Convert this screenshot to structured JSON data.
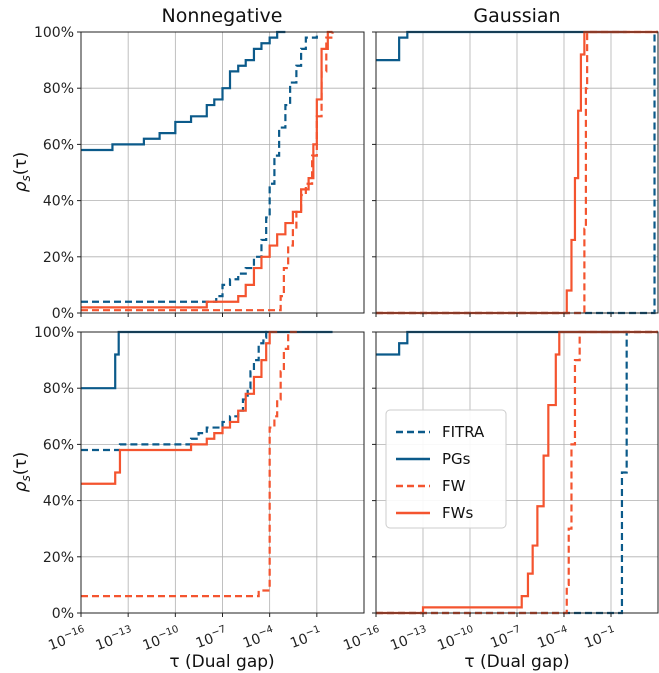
{
  "column_titles": [
    "Nonnegative",
    "Gaussian"
  ],
  "ylabel": "ρs(τ)",
  "ylabel_main": "ρ",
  "ylabel_sub": "s",
  "ylabel_rest": "(τ)",
  "xlabel": "τ (Dual gap)",
  "y_tick_labels": [
    "0%",
    "20%",
    "40%",
    "60%",
    "80%",
    "100%"
  ],
  "x_tick_labels": [
    {
      "base": "10",
      "exp": "−16"
    },
    {
      "base": "10",
      "exp": "−13"
    },
    {
      "base": "10",
      "exp": "−10"
    },
    {
      "base": "10",
      "exp": "−7"
    },
    {
      "base": "10",
      "exp": "−4"
    },
    {
      "base": "10",
      "exp": "−1"
    }
  ],
  "legend": [
    {
      "label": "FITRA",
      "color": "#0b5a8a",
      "dash": true
    },
    {
      "label": "PGs",
      "color": "#0b5a8a",
      "dash": false
    },
    {
      "label": "FW",
      "color": "#f4542f",
      "dash": true
    },
    {
      "label": "FWs",
      "color": "#f4542f",
      "dash": false
    }
  ],
  "chart_data": [
    {
      "type": "line",
      "title": "Nonnegative",
      "x_scale": "log",
      "xlim": [
        1e-16,
        100
      ],
      "ylim": [
        0,
        1
      ],
      "grid": true,
      "series": [
        {
          "name": "FITRA",
          "style": "dashed",
          "color": "#0b5a8a",
          "x": [
            1e-16,
            1e-15,
            1e-14,
            1e-12,
            1e-09,
            4e-08,
            1e-07,
            3e-07,
            1e-06,
            3e-06,
            1e-05,
            3e-05,
            6e-05,
            0.0001,
            0.0002,
            0.0004,
            0.001,
            0.002,
            0.005,
            0.01,
            0.02,
            0.1
          ],
          "y": [
            0.04,
            0.04,
            0.04,
            0.04,
            0.04,
            0.06,
            0.1,
            0.12,
            0.14,
            0.16,
            0.2,
            0.26,
            0.34,
            0.46,
            0.56,
            0.66,
            0.74,
            0.82,
            0.88,
            0.94,
            0.98,
            1.0
          ]
        },
        {
          "name": "PGs",
          "style": "solid",
          "color": "#0b5a8a",
          "x": [
            1e-16,
            1e-14,
            1e-13,
            1e-12,
            1e-11,
            1e-10,
            1e-09,
            1e-08,
            3e-08,
            1e-07,
            3e-07,
            1e-06,
            3e-06,
            1e-05,
            3e-05,
            0.0001,
            0.0003,
            0.001
          ],
          "y": [
            0.58,
            0.6,
            0.6,
            0.62,
            0.64,
            0.68,
            0.7,
            0.74,
            0.76,
            0.8,
            0.86,
            0.88,
            0.9,
            0.94,
            0.96,
            0.98,
            1.0,
            1.0
          ]
        },
        {
          "name": "FW",
          "style": "dashed",
          "color": "#f4542f",
          "x": [
            1e-16,
            1e-10,
            1e-06,
            0.0003,
            0.0005,
            0.0008,
            0.0015,
            0.003,
            0.005,
            0.01,
            0.02,
            0.05,
            0.1,
            0.2,
            0.4,
            1
          ],
          "y": [
            0.01,
            0.01,
            0.01,
            0.01,
            0.06,
            0.16,
            0.24,
            0.3,
            0.36,
            0.42,
            0.46,
            0.56,
            0.7,
            0.86,
            0.98,
            1.0
          ]
        },
        {
          "name": "FWs",
          "style": "solid",
          "color": "#f4542f",
          "x": [
            1e-16,
            1e-12,
            1e-09,
            1e-08,
            1e-07,
            1e-06,
            3e-06,
            1e-05,
            3e-05,
            0.0001,
            0.0003,
            0.001,
            0.003,
            0.01,
            0.03,
            0.06,
            0.1,
            0.2,
            0.5,
            1
          ],
          "y": [
            0.02,
            0.02,
            0.02,
            0.04,
            0.04,
            0.06,
            0.1,
            0.16,
            0.2,
            0.24,
            0.28,
            0.32,
            0.36,
            0.44,
            0.48,
            0.6,
            0.76,
            0.94,
            1.0,
            1.0
          ]
        }
      ]
    },
    {
      "type": "line",
      "title": "Gaussian",
      "x_scale": "log",
      "xlim": [
        1e-16,
        100
      ],
      "ylim": [
        0,
        1
      ],
      "grid": true,
      "series": [
        {
          "name": "FITRA",
          "style": "dashed",
          "color": "#0b5a8a",
          "x": [
            1e-16,
            10,
            50,
            60,
            100
          ],
          "y": [
            0.0,
            0.0,
            0.0,
            1.0,
            1.0
          ]
        },
        {
          "name": "PGs",
          "style": "solid",
          "color": "#0b5a8a",
          "x": [
            1e-16,
            1e-15,
            3e-15,
            1e-14,
            0.001,
            0.01,
            1
          ],
          "y": [
            0.9,
            0.9,
            0.98,
            1.0,
            1.0,
            1.0,
            1.0
          ]
        },
        {
          "name": "FW",
          "style": "dashed",
          "color": "#f4542f",
          "x": [
            1e-16,
            0.0001,
            0.0015,
            0.002,
            0.0025,
            0.003,
            100
          ],
          "y": [
            0.0,
            0.0,
            0.0,
            0.3,
            0.8,
            1.0,
            1.0
          ]
        },
        {
          "name": "FWs",
          "style": "solid",
          "color": "#f4542f",
          "x": [
            1e-16,
            1e-05,
            8e-05,
            0.00015,
            0.0003,
            0.0005,
            0.0008,
            0.0012,
            0.002,
            100
          ],
          "y": [
            0.0,
            0.0,
            0.0,
            0.08,
            0.26,
            0.48,
            0.72,
            0.92,
            1.0,
            1.0
          ]
        }
      ]
    },
    {
      "type": "line",
      "title": "",
      "x_scale": "log",
      "xlim": [
        1e-16,
        100
      ],
      "ylim": [
        0,
        1
      ],
      "grid": true,
      "series": [
        {
          "name": "FITRA",
          "style": "dashed",
          "color": "#0b5a8a",
          "x": [
            1e-16,
            1e-14,
            3e-14,
            1e-12,
            1e-10,
            1e-09,
            3e-09,
            1e-08,
            3e-08,
            1e-07,
            3e-07,
            1e-06,
            2e-06,
            4e-06,
            6e-06,
            1e-05,
            2e-05,
            4e-05,
            6e-05,
            0.0001
          ],
          "y": [
            0.58,
            0.58,
            0.6,
            0.6,
            0.6,
            0.62,
            0.64,
            0.66,
            0.66,
            0.68,
            0.7,
            0.72,
            0.76,
            0.8,
            0.86,
            0.9,
            0.96,
            0.98,
            1.0,
            1.0
          ]
        },
        {
          "name": "PGs",
          "style": "solid",
          "color": "#0b5a8a",
          "x": [
            1e-16,
            1e-14,
            1.5e-14,
            2.5e-14,
            0.0001,
            1
          ],
          "y": [
            0.8,
            0.8,
            0.92,
            1.0,
            1.0,
            1.0
          ]
        },
        {
          "name": "FW",
          "style": "dashed",
          "color": "#f4542f",
          "x": [
            1e-16,
            1e-07,
            1e-05,
            2e-05,
            4e-05,
            0.0001,
            0.0002,
            0.0003,
            0.0005,
            0.0008,
            0.0015,
            0.01
          ],
          "y": [
            0.06,
            0.06,
            0.06,
            0.08,
            0.08,
            0.66,
            0.7,
            0.76,
            0.86,
            0.94,
            1.0,
            1.0
          ]
        },
        {
          "name": "FWs",
          "style": "solid",
          "color": "#f4542f",
          "x": [
            1e-16,
            1e-14,
            1.5e-14,
            3e-14,
            1e-12,
            1e-10,
            1e-09,
            1e-08,
            3e-08,
            1e-07,
            3e-07,
            1e-06,
            3e-06,
            1e-05,
            3e-05,
            6e-05,
            0.0001,
            0.0003
          ],
          "y": [
            0.46,
            0.46,
            0.5,
            0.58,
            0.58,
            0.58,
            0.6,
            0.62,
            0.64,
            0.66,
            0.68,
            0.72,
            0.78,
            0.84,
            0.9,
            0.96,
            1.0,
            1.0
          ]
        }
      ]
    },
    {
      "type": "line",
      "title": "",
      "x_scale": "log",
      "xlim": [
        1e-16,
        100
      ],
      "ylim": [
        0,
        1
      ],
      "grid": true,
      "series": [
        {
          "name": "FITRA",
          "style": "dashed",
          "color": "#0b5a8a",
          "x": [
            1e-16,
            0.01,
            0.3,
            0.5,
            1,
            100
          ],
          "y": [
            0.0,
            0.0,
            0.0,
            0.5,
            1.0,
            1.0
          ]
        },
        {
          "name": "PGs",
          "style": "solid",
          "color": "#0b5a8a",
          "x": [
            1e-16,
            1e-15,
            3e-15,
            1e-14,
            1e-06,
            1
          ],
          "y": [
            0.92,
            0.92,
            0.96,
            1.0,
            1.0,
            1.0
          ]
        },
        {
          "name": "FW",
          "style": "dashed",
          "color": "#f4542f",
          "x": [
            1e-16,
            1e-06,
            0.0001,
            0.00015,
            0.0002,
            0.0003,
            0.0005,
            0.001,
            100
          ],
          "y": [
            0.0,
            0.0,
            0.0,
            0.1,
            0.3,
            0.6,
            0.9,
            1.0,
            1.0
          ]
        },
        {
          "name": "FWs",
          "style": "solid",
          "color": "#f4542f",
          "x": [
            1e-16,
            1e-14,
            1e-13,
            1e-10,
            1e-08,
            1e-07,
            2e-07,
            5e-07,
            1e-06,
            2e-06,
            5e-06,
            1e-05,
            3e-05,
            5e-05,
            8e-05,
            100
          ],
          "y": [
            0.0,
            0.0,
            0.02,
            0.02,
            0.02,
            0.02,
            0.06,
            0.14,
            0.24,
            0.38,
            0.56,
            0.74,
            0.92,
            1.0,
            1.0,
            1.0
          ]
        }
      ]
    }
  ]
}
